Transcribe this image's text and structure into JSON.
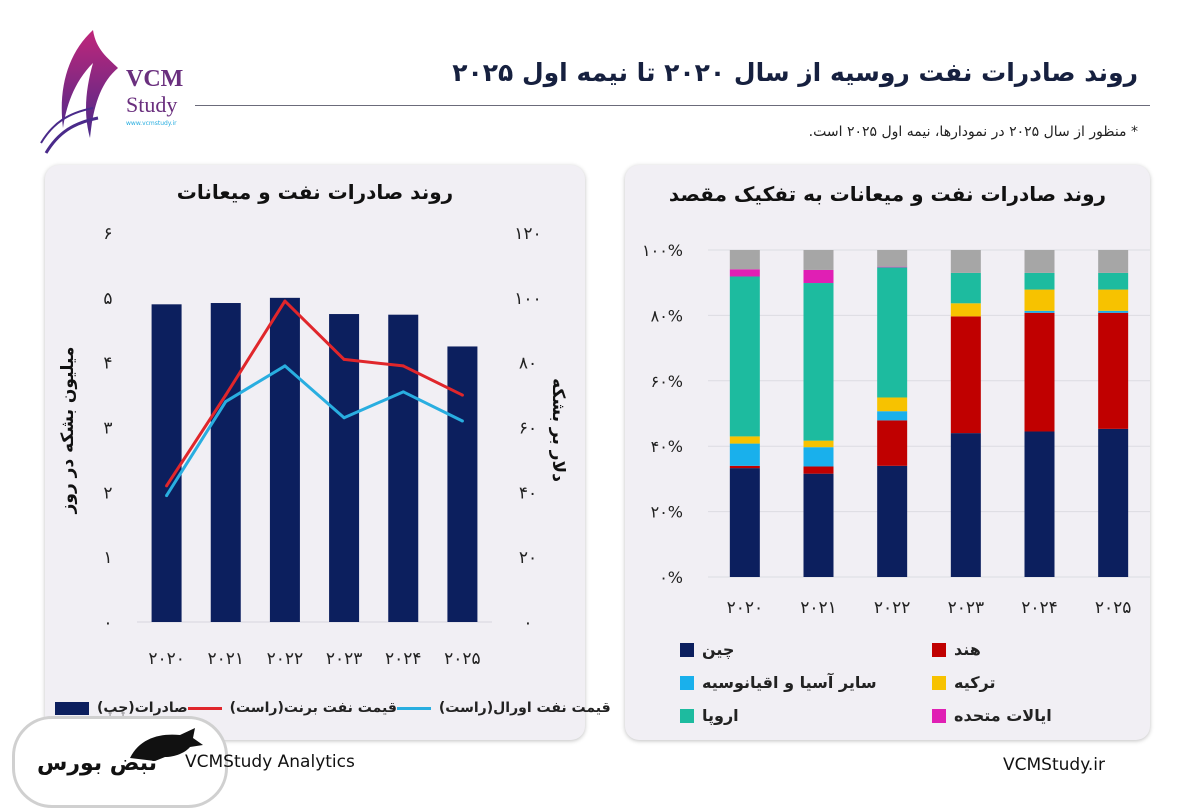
{
  "header": {
    "title": "روند صادرات نفت روسیه از سال ۲۰۲۰ تا نیمه اول ۲۰۲۵",
    "note": "* منظور از سال ۲۰۲۵ در نمودارها، نیمه اول ۲۰۲۵ است.",
    "logo": {
      "line1": "VCM",
      "line2": "Study",
      "url": "www.vcmstudy.ir"
    }
  },
  "footer": {
    "left": "VCMStudy Analytics",
    "right": "VCMStudy.ir",
    "badge_logo": "نبض بورس"
  },
  "colors": {
    "navy": "#0c1f5e",
    "red": "#c00000",
    "brent": "#e0262b",
    "urals": "#29aee0",
    "china": "#0c1f5e",
    "india": "#c00000",
    "other_asia": "#19b0ec",
    "turkey": "#f7c200",
    "europe": "#1dbb9f",
    "usa": "#e01fb4",
    "other": "#a6a6a6"
  },
  "chart_data": [
    {
      "type": "bar",
      "title": "روند صادرات نفت و میعانات",
      "categories": [
        "۲۰۲۰",
        "۲۰۲۱",
        "۲۰۲۲",
        "۲۰۲۳",
        "۲۰۲۴",
        "۲۰۲۵"
      ],
      "ylabel": "میلیون بشکه در روز",
      "ylabel_right": "دلار بر بشکه",
      "ylim": [
        0,
        6
      ],
      "ylim_right": [
        0,
        120
      ],
      "yticks": [
        "۰",
        "۱",
        "۲",
        "۳",
        "۴",
        "۵",
        "۶"
      ],
      "yticks_right": [
        "۰",
        "۲۰",
        "۴۰",
        "۶۰",
        "۸۰",
        "۱۰۰",
        "۱۲۰"
      ],
      "grid": false,
      "legend": "bottom",
      "series": [
        {
          "name": "صادرات(چپ)",
          "type": "bar",
          "axis": "left",
          "color": "#0c1f5e",
          "values": [
            4.9,
            4.92,
            5.0,
            4.75,
            4.74,
            4.25
          ]
        },
        {
          "name": "قیمت نفت برنت(راست)",
          "type": "line",
          "axis": "right",
          "color": "#e0262b",
          "values": [
            42,
            70,
            99,
            81,
            79,
            70
          ]
        },
        {
          "name": "قیمت نفت اورال(راست)",
          "type": "line",
          "axis": "right",
          "color": "#29aee0",
          "values": [
            39,
            68,
            79,
            63,
            71,
            62
          ]
        }
      ]
    },
    {
      "type": "bar",
      "stacked": true,
      "title": "روند صادرات نفت و میعانات به تفکیک مقصد",
      "categories": [
        "۲۰۲۰",
        "۲۰۲۱",
        "۲۰۲۲",
        "۲۰۲۳",
        "۲۰۲۴",
        "۲۰۲۵"
      ],
      "ylim": [
        0,
        100
      ],
      "yticks": [
        "۰%",
        "۲۰%",
        "۴۰%",
        "۶۰%",
        "۸۰%",
        "۱۰۰%"
      ],
      "grid": true,
      "legend": "bottom",
      "series": [
        {
          "name": "چین",
          "color": "#0c1f5e",
          "values": [
            33.3,
            31.6,
            34.0,
            44.0,
            44.5,
            45.3
          ]
        },
        {
          "name": "هند",
          "color": "#c00000",
          "values": [
            0.7,
            2.2,
            13.9,
            35.7,
            36.3,
            35.5
          ]
        },
        {
          "name": "سایر آسیا و اقیانوسیه",
          "color": "#19b0ec",
          "values": [
            6.8,
            5.9,
            2.8,
            0,
            0.6,
            0.6
          ]
        },
        {
          "name": "ترکیه",
          "color": "#f7c200",
          "values": [
            2.2,
            2.0,
            4.2,
            4.0,
            6.5,
            6.5
          ]
        },
        {
          "name": "اروپا",
          "color": "#1dbb9f",
          "values": [
            48.9,
            48.2,
            39.8,
            9.3,
            5.1,
            5.1
          ]
        },
        {
          "name": "ایالات متحده",
          "color": "#e01fb4",
          "values": [
            2.2,
            4.0,
            0.2,
            0,
            0,
            0
          ]
        },
        {
          "color": "#a6a6a6",
          "values": [
            5.9,
            6.1,
            5.1,
            7.0,
            7.0,
            7.0
          ]
        }
      ]
    }
  ]
}
